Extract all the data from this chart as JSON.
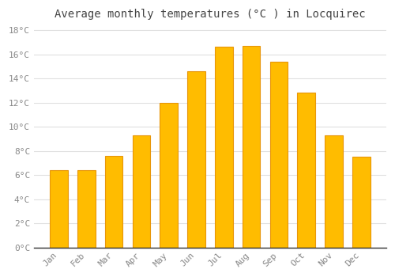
{
  "title": "Average monthly temperatures (°C ) in Locquirec",
  "months": [
    "Jan",
    "Feb",
    "Mar",
    "Apr",
    "May",
    "Jun",
    "Jul",
    "Aug",
    "Sep",
    "Oct",
    "Nov",
    "Dec"
  ],
  "values": [
    6.4,
    6.4,
    7.6,
    9.3,
    12.0,
    14.6,
    16.6,
    16.7,
    15.4,
    12.8,
    9.3,
    7.5
  ],
  "bar_color": "#FFBC00",
  "bar_edge_color": "#E8960A",
  "background_color": "#FFFFFF",
  "grid_color": "#E0E0E0",
  "ylim": [
    0,
    18.5
  ],
  "yticks": [
    0,
    2,
    4,
    6,
    8,
    10,
    12,
    14,
    16,
    18
  ],
  "ytick_labels": [
    "0°C",
    "2°C",
    "4°C",
    "6°C",
    "8°C",
    "10°C",
    "12°C",
    "14°C",
    "16°C",
    "18°C"
  ],
  "title_fontsize": 10,
  "tick_fontsize": 8,
  "tick_color": "#888888",
  "title_color": "#444444",
  "bar_width": 0.65
}
